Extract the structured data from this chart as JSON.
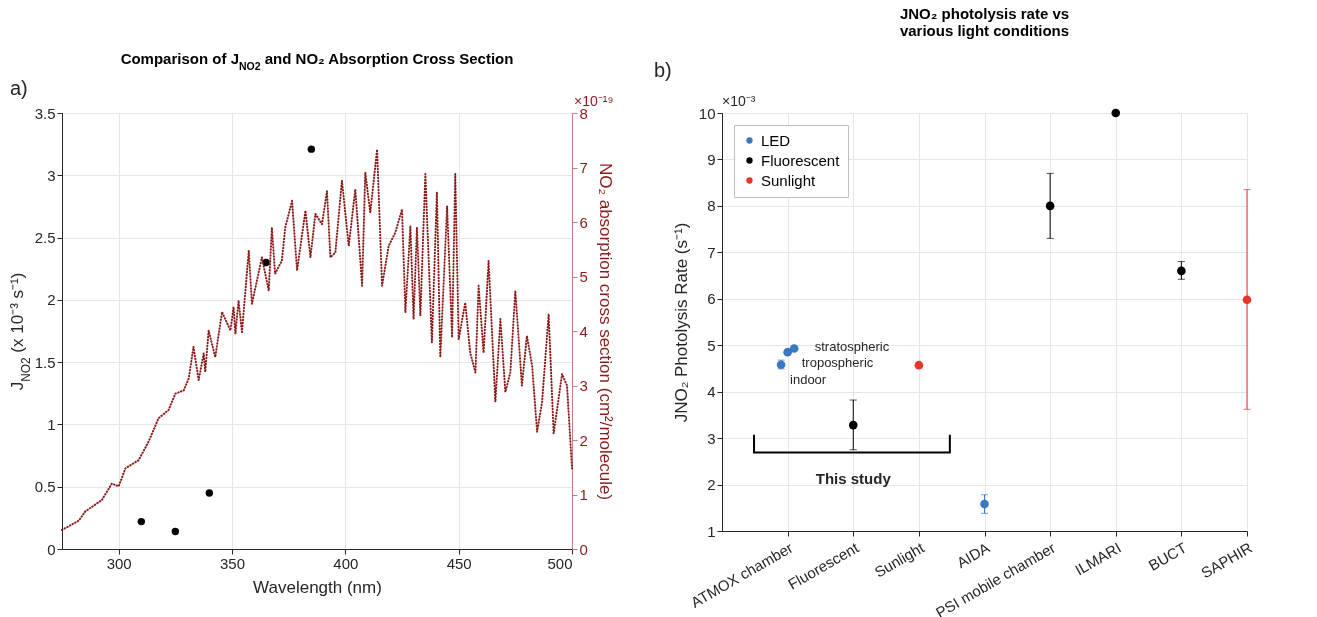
{
  "chart_data": [
    {
      "type": "scatter",
      "title": "Comparison of J$_{NO2}$ and NO₂ Absorption Cross Section",
      "xlabel": "Wavelength (nm)",
      "ylabel": "J$_{NO2}$ (x 10⁻³ s⁻¹)",
      "y2label": "NO₂ absorption cross section (cm²/molecule)",
      "annotations": [
        "a)",
        "×10⁻¹⁹"
      ],
      "xlim": [
        275,
        500
      ],
      "xticks": [
        300,
        350,
        400,
        450,
        500
      ],
      "ylim": [
        0,
        3.5
      ],
      "yticks": [
        0,
        0.5,
        1,
        1.5,
        2,
        2.5,
        3,
        3.5
      ],
      "y2lim": [
        0,
        8
      ],
      "y2ticks": [
        0,
        1,
        2,
        3,
        4,
        5,
        6,
        7,
        8
      ],
      "grid": true,
      "series": [
        {
          "color": "#000000",
          "marker": "circle",
          "x": [
            310,
            325,
            340,
            365,
            385
          ],
          "values": [
            0.22,
            0.14,
            0.45,
            2.3,
            3.21
          ]
        },
        {
          "type": "line",
          "axis": "y2",
          "color": "#8b1a1a",
          "marker": "none",
          "line_style": "dotted",
          "x": [
            275,
            282.4,
            285.3,
            292.6,
            297,
            300,
            303,
            308.8,
            313.2,
            317.6,
            322,
            325,
            328.7,
            330.9,
            333,
            335.3,
            337.5,
            338.2,
            339.7,
            342.6,
            345.6,
            349.3,
            350.7,
            351.5,
            352.9,
            354.4,
            357.4,
            358.8,
            363.2,
            366.2,
            367.6,
            369,
            372,
            373.5,
            376.5,
            378.7,
            382.4,
            384.6,
            386.8,
            389.7,
            391.9,
            393.4,
            395.6,
            398.5,
            401.5,
            404.4,
            407.4,
            408.8,
            411,
            414,
            416.2,
            419.1,
            422,
            425,
            426.5,
            428.7,
            430.1,
            431.6,
            433.1,
            435.3,
            438.2,
            440.4,
            441.9,
            444.9,
            447.1,
            448.5,
            450,
            452.9,
            455.1,
            457.4,
            458.8,
            461,
            463.2,
            466.2,
            468.4,
            470.6,
            472.8,
            475,
            477.9,
            480.1,
            482.4,
            484.6,
            486.8,
            489.7,
            491.9,
            495.6,
            497.8,
            500
          ],
          "values": [
            0.35,
            0.52,
            0.69,
            0.9,
            1.2,
            1.15,
            1.48,
            1.63,
            1.97,
            2.4,
            2.55,
            2.85,
            2.91,
            3.13,
            3.71,
            3.1,
            3.59,
            3.25,
            4.01,
            3.52,
            4.35,
            4.01,
            4.44,
            3.95,
            4.56,
            3.98,
            5.48,
            4.5,
            5.35,
            4.74,
            5.9,
            5.05,
            5.29,
            5.9,
            6.39,
            5.11,
            6.21,
            5.35,
            6.15,
            5.96,
            6.57,
            5.35,
            5.44,
            6.76,
            5.56,
            6.6,
            4.83,
            6.91,
            6.17,
            7.33,
            4.83,
            5.56,
            5.8,
            6.23,
            4.34,
            5.93,
            4.22,
            5.9,
            4.28,
            6.88,
            3.79,
            6.55,
            3.52,
            6.29,
            3.88,
            6.88,
            3.85,
            4.52,
            3.6,
            3.24,
            4.83,
            3.6,
            5.29,
            2.7,
            4.22,
            2.88,
            3.24,
            4.74,
            3.0,
            3.91,
            3.37,
            2.15,
            2.7,
            4.31,
            2.12,
            3.21,
            3.0,
            1.48
          ]
        }
      ]
    },
    {
      "type": "scatter",
      "title": "JNO₂ photolysis rate vs\nvarious light conditions",
      "ylabel": "JNO₂ Photolysis Rate (s⁻¹)",
      "annotations": [
        "b)",
        "×10⁻³",
        "stratospheric",
        "tropospheric",
        "indoor",
        "This study"
      ],
      "categories": [
        "ATMOX chamber",
        "Fluorescent",
        "Sunlight",
        "AIDA",
        "PSI mobile chamber",
        "ILMARI",
        "BUCT",
        "SAPHIR"
      ],
      "ylim": [
        1,
        10
      ],
      "yticks": [
        1,
        2,
        3,
        4,
        5,
        6,
        7,
        8,
        9,
        10
      ],
      "grid": true,
      "legend": "top left",
      "marker": "circle",
      "series": [
        {
          "name": "LED",
          "color": "#3b78c4",
          "x": [
            "ATMOX chamber",
            "ATMOX chamber",
            "ATMOX chamber",
            "AIDA"
          ],
          "values": [
            4.58,
            4.85,
            4.93,
            1.58
          ],
          "errors": [
            [
              4.49,
              4.68
            ],
            null,
            null,
            [
              1.38,
              1.78
            ]
          ]
        },
        {
          "name": "Fluorescent",
          "color": "#000000",
          "x": [
            "Fluorescent",
            "PSI mobile chamber",
            "ILMARI",
            "BUCT"
          ],
          "values": [
            3.28,
            8.0,
            10,
            6.6
          ],
          "errors": [
            [
              2.75,
              3.82
            ],
            [
              7.3,
              8.7
            ],
            null,
            [
              6.42,
              6.8
            ]
          ]
        },
        {
          "name": "Sunlight",
          "color": "#e8352a",
          "x": [
            "Sunlight",
            "SAPHIR"
          ],
          "values": [
            4.57,
            5.98
          ],
          "errors": [
            null,
            [
              3.62,
              8.35
            ]
          ]
        }
      ]
    }
  ]
}
